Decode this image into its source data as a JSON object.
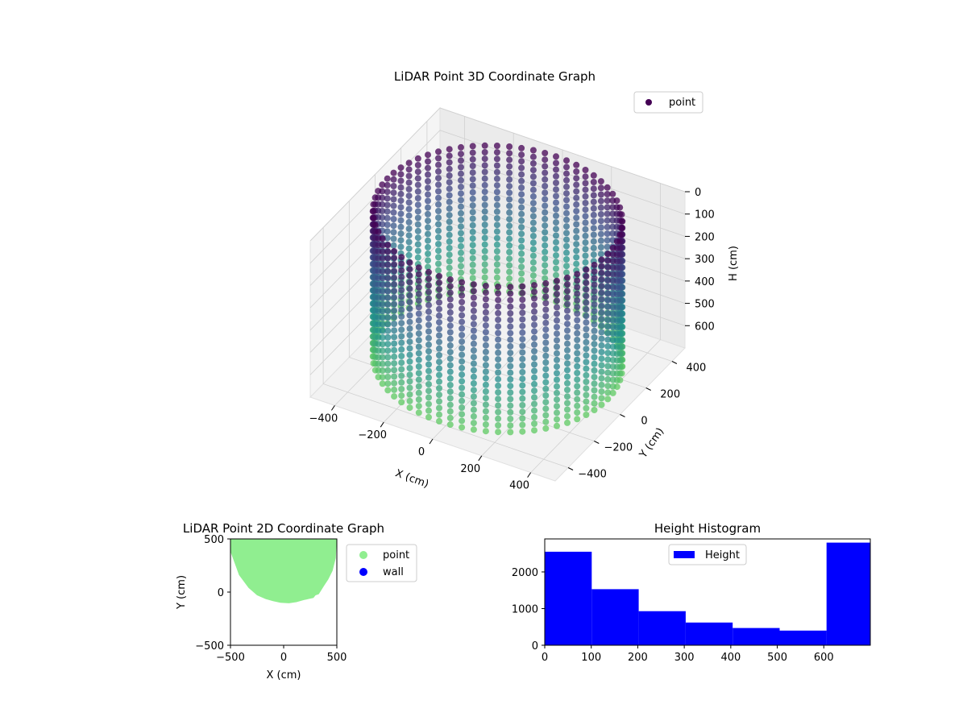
{
  "colors": {
    "background": "#ffffff",
    "pane": "#f2f2f2",
    "point_2d": "#90ee90",
    "wall_2d": "#0000ff",
    "hist_bar": "#0000ff",
    "viridis_dark": "#440154",
    "viridis_mid": "#3b528b",
    "viridis_teal": "#21918c",
    "viridis_green": "#5ec962",
    "legend_marker": "#440154"
  },
  "chart_data": [
    {
      "id": "scatter3d",
      "type": "scatter",
      "projection": "3d",
      "title": "LiDAR Point 3D Coordinate Graph",
      "xlabel": "X (cm)",
      "ylabel": "Y (cm)",
      "zlabel": "H (cm)",
      "xlim": [
        -500,
        500
      ],
      "ylim": [
        -500,
        500
      ],
      "zlim": [
        0,
        700
      ],
      "z_inverted": true,
      "xticks": [
        -400,
        -200,
        0,
        200,
        400
      ],
      "yticks": [
        -400,
        -200,
        0,
        200,
        400
      ],
      "zticks": [
        0,
        100,
        200,
        300,
        400,
        500,
        600
      ],
      "xtick_labels": [
        "−400",
        "−200",
        "0",
        "200",
        "400"
      ],
      "ytick_labels": [
        "−400",
        "−200",
        "0",
        "200",
        "400"
      ],
      "ztick_labels": [
        "0",
        "100",
        "200",
        "300",
        "400",
        "500",
        "600"
      ],
      "colormap": "viridis",
      "grid": true,
      "legend": {
        "position": "top-right",
        "entries": [
          "point"
        ]
      },
      "series": [
        {
          "name": "point",
          "shape": "cylindrical wall of points, radius ~450 cm, centered at origin, heights 0-650 cm",
          "radius": 450,
          "height_range": [
            0,
            650
          ]
        }
      ]
    },
    {
      "id": "scatter2d",
      "type": "scatter",
      "title": "LiDAR Point 2D Coordinate Graph",
      "xlabel": "X (cm)",
      "ylabel": "Y (cm)",
      "xlim": [
        -500,
        500
      ],
      "ylim": [
        -500,
        500
      ],
      "xticks": [
        -500,
        0,
        500
      ],
      "yticks": [
        -500,
        0,
        500
      ],
      "xtick_labels": [
        "−500",
        "0",
        "500"
      ],
      "ytick_labels": [
        "−500",
        "0",
        "500"
      ],
      "grid": false,
      "legend": {
        "position": "outside-right",
        "entries": [
          "point",
          "wall"
        ]
      },
      "series": [
        {
          "name": "point",
          "shape": "filled region: upper part of disk of radius ~500 cm, lower boundary dipping to about y = -110",
          "boundary": [
            [
              -500,
              380
            ],
            [
              -420,
              160
            ],
            [
              -330,
              40
            ],
            [
              -250,
              -30
            ],
            [
              -170,
              -65
            ],
            [
              -100,
              -85
            ],
            [
              -30,
              -100
            ],
            [
              50,
              -105
            ],
            [
              120,
              -95
            ],
            [
              190,
              -75
            ],
            [
              280,
              -55
            ],
            [
              300,
              -30
            ],
            [
              330,
              -20
            ],
            [
              380,
              60
            ],
            [
              420,
              120
            ],
            [
              460,
              200
            ],
            [
              490,
              320
            ],
            [
              500,
              500
            ],
            [
              -500,
              500
            ]
          ]
        },
        {
          "name": "wall",
          "points": []
        }
      ]
    },
    {
      "id": "histogram",
      "type": "bar",
      "title": "Height Histogram",
      "xlabel": "",
      "ylabel": "",
      "xlim": [
        0,
        700
      ],
      "ylim": [
        0,
        2900
      ],
      "xticks": [
        0,
        100,
        200,
        300,
        400,
        500,
        600
      ],
      "yticks": [
        0,
        1000,
        2000
      ],
      "xtick_labels": [
        "0",
        "100",
        "200",
        "300",
        "400",
        "500",
        "600"
      ],
      "ytick_labels": [
        "0",
        "1000",
        "2000"
      ],
      "legend": {
        "position": "upper-center",
        "entries": [
          "Height"
        ]
      },
      "series": [
        {
          "name": "Height",
          "bin_edges": [
            0,
            101,
            202,
            303,
            404,
            505,
            606,
            707
          ],
          "values": [
            2550,
            1530,
            930,
            620,
            470,
            400,
            2800
          ]
        }
      ]
    }
  ]
}
